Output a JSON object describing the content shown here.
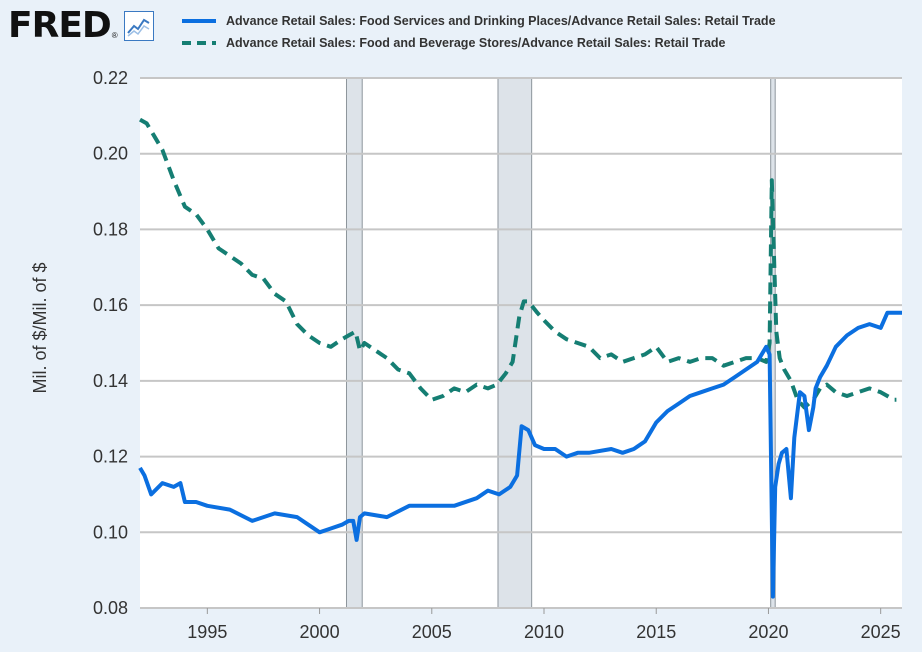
{
  "header": {
    "logo_text": "FRED",
    "logo_registered": "®",
    "logo_icon": "line-chart-icon"
  },
  "chart_data": {
    "type": "line",
    "title": "",
    "xlabel": "",
    "ylabel": "Mil. of $/Mil. of $",
    "xlim": [
      1992.0,
      2025.95
    ],
    "ylim": [
      0.08,
      0.22
    ],
    "yticks": [
      0.08,
      0.1,
      0.12,
      0.14,
      0.16,
      0.18,
      0.2,
      0.22
    ],
    "ytick_labels": [
      "0.08",
      "0.10",
      "0.12",
      "0.14",
      "0.16",
      "0.18",
      "0.20",
      "0.22"
    ],
    "xticks": [
      1995,
      2000,
      2005,
      2010,
      2015,
      2020,
      2025
    ],
    "xtick_labels": [
      "1995",
      "2000",
      "2005",
      "2010",
      "2015",
      "2020",
      "2025"
    ],
    "grid": true,
    "recessions": [
      {
        "start": 2001.2,
        "end": 2001.9
      },
      {
        "start": 2007.95,
        "end": 2009.45
      },
      {
        "start": 2020.1,
        "end": 2020.3
      }
    ],
    "series": [
      {
        "name": "Advance Retail Sales: Food Services and Drinking Places/Advance Retail Sales: Retail Trade",
        "color": "#0b6fe0",
        "style": "solid",
        "x": [
          1992.0,
          1992.2,
          1992.5,
          1993.0,
          1993.5,
          1993.8,
          1994.0,
          1994.5,
          1995.0,
          1996.0,
          1997.0,
          1998.0,
          1999.0,
          1999.5,
          2000.0,
          2000.5,
          2001.0,
          2001.3,
          2001.5,
          2001.65,
          2001.8,
          2002.0,
          2003.0,
          2004.0,
          2005.0,
          2006.0,
          2007.0,
          2007.5,
          2008.0,
          2008.5,
          2008.8,
          2009.0,
          2009.3,
          2009.6,
          2010.0,
          2010.5,
          2011.0,
          2011.5,
          2012.0,
          2013.0,
          2013.5,
          2014.0,
          2014.5,
          2015.0,
          2015.5,
          2016.0,
          2016.5,
          2017.0,
          2017.5,
          2018.0,
          2018.5,
          2019.0,
          2019.5,
          2019.9,
          2020.05,
          2020.2,
          2020.3,
          2020.45,
          2020.6,
          2020.8,
          2021.0,
          2021.15,
          2021.4,
          2021.6,
          2021.8,
          2022.0,
          2022.1,
          2022.3,
          2022.6,
          2023.0,
          2023.5,
          2024.0,
          2024.5,
          2025.0,
          2025.3,
          2025.5,
          2025.95
        ],
        "y": [
          0.117,
          0.115,
          0.11,
          0.113,
          0.112,
          0.113,
          0.108,
          0.108,
          0.107,
          0.106,
          0.103,
          0.105,
          0.104,
          0.102,
          0.1,
          0.101,
          0.102,
          0.103,
          0.103,
          0.098,
          0.104,
          0.105,
          0.104,
          0.107,
          0.107,
          0.107,
          0.109,
          0.111,
          0.11,
          0.112,
          0.115,
          0.128,
          0.127,
          0.123,
          0.122,
          0.122,
          0.12,
          0.121,
          0.121,
          0.122,
          0.121,
          0.122,
          0.124,
          0.129,
          0.132,
          0.134,
          0.136,
          0.137,
          0.138,
          0.139,
          0.141,
          0.143,
          0.145,
          0.149,
          0.147,
          0.083,
          0.112,
          0.118,
          0.121,
          0.122,
          0.109,
          0.125,
          0.137,
          0.136,
          0.127,
          0.133,
          0.138,
          0.141,
          0.144,
          0.149,
          0.152,
          0.154,
          0.155,
          0.154,
          0.158,
          0.158,
          0.158
        ]
      },
      {
        "name": "Advance Retail Sales: Food and Beverage Stores/Advance Retail Sales: Retail Trade",
        "color": "#157e73",
        "style": "dashed",
        "x": [
          1992.0,
          1992.3,
          1992.6,
          1993.0,
          1993.5,
          1994.0,
          1994.5,
          1995.0,
          1995.5,
          1996.0,
          1996.5,
          1997.0,
          1997.5,
          1998.0,
          1998.5,
          1999.0,
          1999.5,
          2000.0,
          2000.5,
          2001.0,
          2001.3,
          2001.6,
          2001.8,
          2002.0,
          2002.5,
          2003.0,
          2003.5,
          2004.0,
          2004.5,
          2005.0,
          2005.5,
          2006.0,
          2006.5,
          2007.0,
          2007.5,
          2007.9,
          2008.3,
          2008.6,
          2008.9,
          2009.1,
          2009.3,
          2009.7,
          2010.0,
          2010.5,
          2011.0,
          2011.5,
          2012.0,
          2012.5,
          2013.0,
          2013.5,
          2014.0,
          2014.5,
          2015.0,
          2015.5,
          2016.0,
          2016.5,
          2017.0,
          2017.5,
          2018.0,
          2018.5,
          2019.0,
          2019.5,
          2019.9,
          2020.05,
          2020.15,
          2020.25,
          2020.35,
          2020.5,
          2020.7,
          2021.0,
          2021.3,
          2021.6,
          2022.0,
          2022.3,
          2022.6,
          2023.0,
          2023.5,
          2024.0,
          2024.5,
          2025.0,
          2025.3,
          2025.6,
          2025.7
        ],
        "y": [
          0.209,
          0.208,
          0.205,
          0.201,
          0.193,
          0.186,
          0.184,
          0.18,
          0.175,
          0.173,
          0.171,
          0.168,
          0.167,
          0.163,
          0.161,
          0.155,
          0.152,
          0.15,
          0.149,
          0.151,
          0.152,
          0.153,
          0.148,
          0.15,
          0.148,
          0.146,
          0.143,
          0.142,
          0.138,
          0.135,
          0.136,
          0.138,
          0.137,
          0.139,
          0.138,
          0.139,
          0.142,
          0.145,
          0.157,
          0.161,
          0.161,
          0.158,
          0.156,
          0.153,
          0.151,
          0.15,
          0.149,
          0.146,
          0.147,
          0.145,
          0.146,
          0.147,
          0.149,
          0.145,
          0.146,
          0.145,
          0.146,
          0.146,
          0.144,
          0.145,
          0.146,
          0.146,
          0.145,
          0.15,
          0.193,
          0.172,
          0.153,
          0.146,
          0.143,
          0.14,
          0.135,
          0.133,
          0.135,
          0.138,
          0.139,
          0.137,
          0.136,
          0.137,
          0.138,
          0.137,
          0.136,
          0.135,
          0.135
        ]
      }
    ]
  }
}
